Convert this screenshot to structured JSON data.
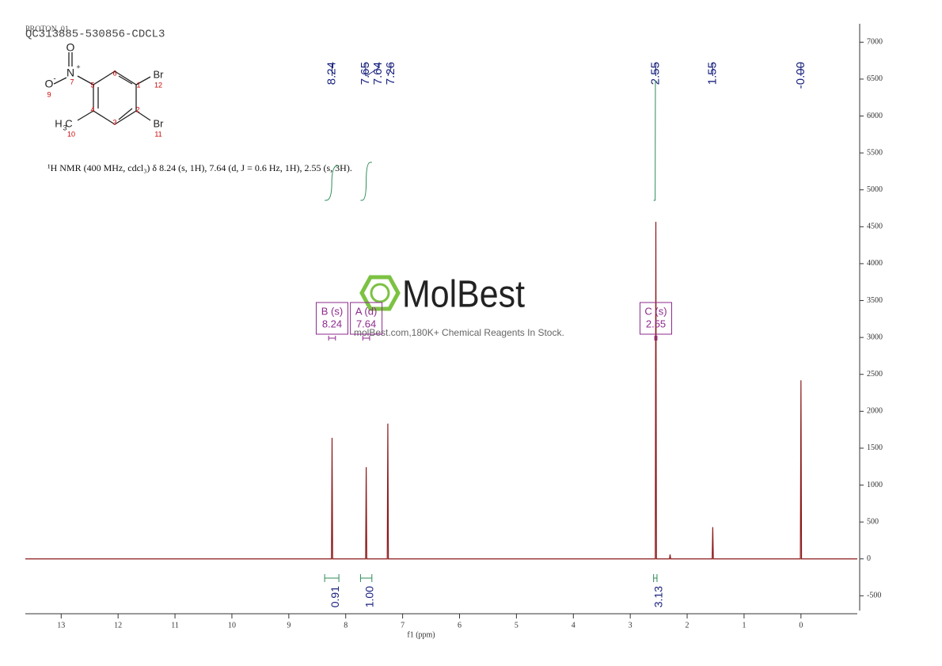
{
  "header": {
    "experiment": "PROTON_01",
    "sample": "QC313885-530856-CDCL3"
  },
  "structure_labels": [
    "O",
    "N",
    "+",
    "O",
    "-",
    "9",
    "7",
    "5",
    "6",
    "1",
    "Br",
    "12",
    "4",
    "2",
    "3",
    "H",
    "3",
    "C",
    "10",
    "Br",
    "11"
  ],
  "description": "¹H NMR (400 MHz, cdcl₃) δ 8.24 (s, 1H), 7.64 (d, J = 0.6 Hz, 1H), 2.55 (s, 3H).",
  "watermark": {
    "brand": "MolBest",
    "slogan": "molBest.com,180K+ Chemical Reagents In Stock."
  },
  "chart_data": {
    "type": "nmr",
    "x_label": "f1 (ppm)",
    "color": "#8b1a1a",
    "xlim": [
      13.63,
      -0.99
    ],
    "xticks": [
      13,
      12,
      11,
      10,
      9,
      8,
      7,
      6,
      5,
      4,
      3,
      2,
      1,
      0
    ],
    "ylim": [
      -700,
      7250
    ],
    "yticks": [
      -500,
      0,
      500,
      1000,
      1500,
      2000,
      2500,
      3000,
      3500,
      4000,
      4500,
      5000,
      5500,
      6000,
      6500,
      7000
    ],
    "spectrum": {
      "x": [
        13.63,
        8.25,
        8.24,
        8.23,
        7.65,
        7.64,
        7.63,
        7.27,
        7.26,
        7.25,
        2.56,
        2.55,
        2.54,
        2.31,
        2.3,
        2.29,
        1.56,
        1.55,
        1.54,
        0.01,
        0,
        -0.01,
        -0.99
      ],
      "y": [
        0,
        0,
        1640,
        0,
        0,
        1243,
        0,
        0,
        1833,
        0,
        0,
        4566,
        0,
        0,
        60,
        0,
        0,
        430,
        0,
        0,
        2420,
        0,
        0
      ]
    },
    "peak_labels": [
      8.24,
      7.65,
      7.64,
      7.26,
      2.55,
      1.55,
      {
        "value": 0,
        "label": "-0.00"
      }
    ],
    "multiplets": [
      {
        "label": "B (s)",
        "shift": 8.24,
        "range": [
          8.3,
          8.18
        ]
      },
      {
        "label": "A (d)",
        "shift": 7.64,
        "range": [
          7.7,
          7.58
        ]
      },
      {
        "label": "C (s)",
        "shift": 2.55,
        "range": [
          2.57,
          2.53
        ]
      }
    ],
    "integrals": [
      {
        "range": [
          8.37,
          8.12
        ],
        "value": 0.91
      },
      {
        "range": [
          7.74,
          7.54
        ],
        "value": 1.0,
        "label": "1.00"
      },
      {
        "range": [
          2.59,
          2.53
        ],
        "value": 3.13
      }
    ]
  }
}
